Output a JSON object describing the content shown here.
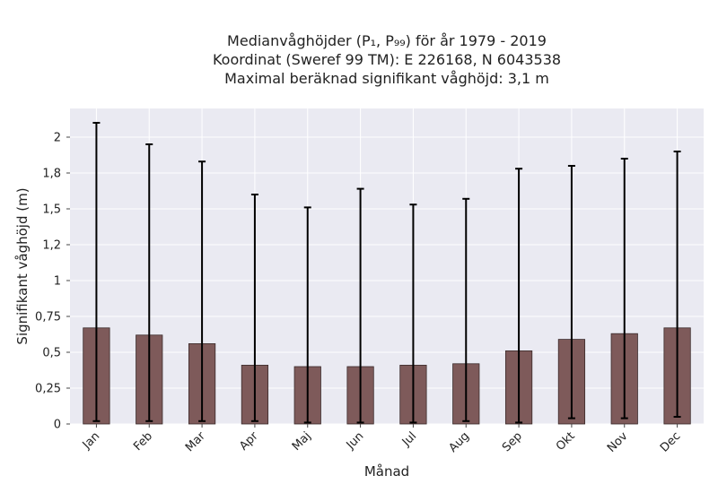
{
  "chart_data": {
    "type": "bar",
    "title_lines": [
      "Medianvåghöjder (P₁, P₉₉) för år 1979 - 2019",
      "Koordinat (Sweref 99 TM): E 226168, N 6043538",
      "Maximal beräknad signifikant våghöjd: 3,1 m"
    ],
    "xlabel": "Månad",
    "ylabel": "Signifikant våghöjd (m)",
    "categories": [
      "Jan",
      "Feb",
      "Mar",
      "Apr",
      "Maj",
      "Jun",
      "Jul",
      "Aug",
      "Sep",
      "Okt",
      "Nov",
      "Dec"
    ],
    "median": [
      0.67,
      0.62,
      0.56,
      0.41,
      0.4,
      0.4,
      0.41,
      0.42,
      0.51,
      0.59,
      0.63,
      0.67
    ],
    "p1": [
      0.02,
      0.02,
      0.02,
      0.02,
      0.01,
      0.01,
      0.01,
      0.02,
      0.01,
      0.04,
      0.04,
      0.05
    ],
    "p99": [
      2.1,
      1.95,
      1.83,
      1.6,
      1.51,
      1.64,
      1.53,
      1.57,
      1.78,
      1.8,
      1.85,
      1.9
    ],
    "yticks": [
      0,
      0.25,
      0.5,
      0.75,
      1,
      1.25,
      1.5,
      1.75,
      2
    ],
    "ytick_labels": [
      "0",
      "0,25",
      "0,5",
      "0,75",
      "1",
      "1,2",
      "1,5",
      "1,8",
      "2"
    ],
    "ylim": [
      0,
      2.2
    ],
    "grid": true,
    "colors": {
      "bar": "#7e5a5a",
      "bar_edge": "#3a2a2a",
      "error_bar": "#000000",
      "plot_background": "#eaeaf2",
      "grid": "#ffffff"
    }
  }
}
